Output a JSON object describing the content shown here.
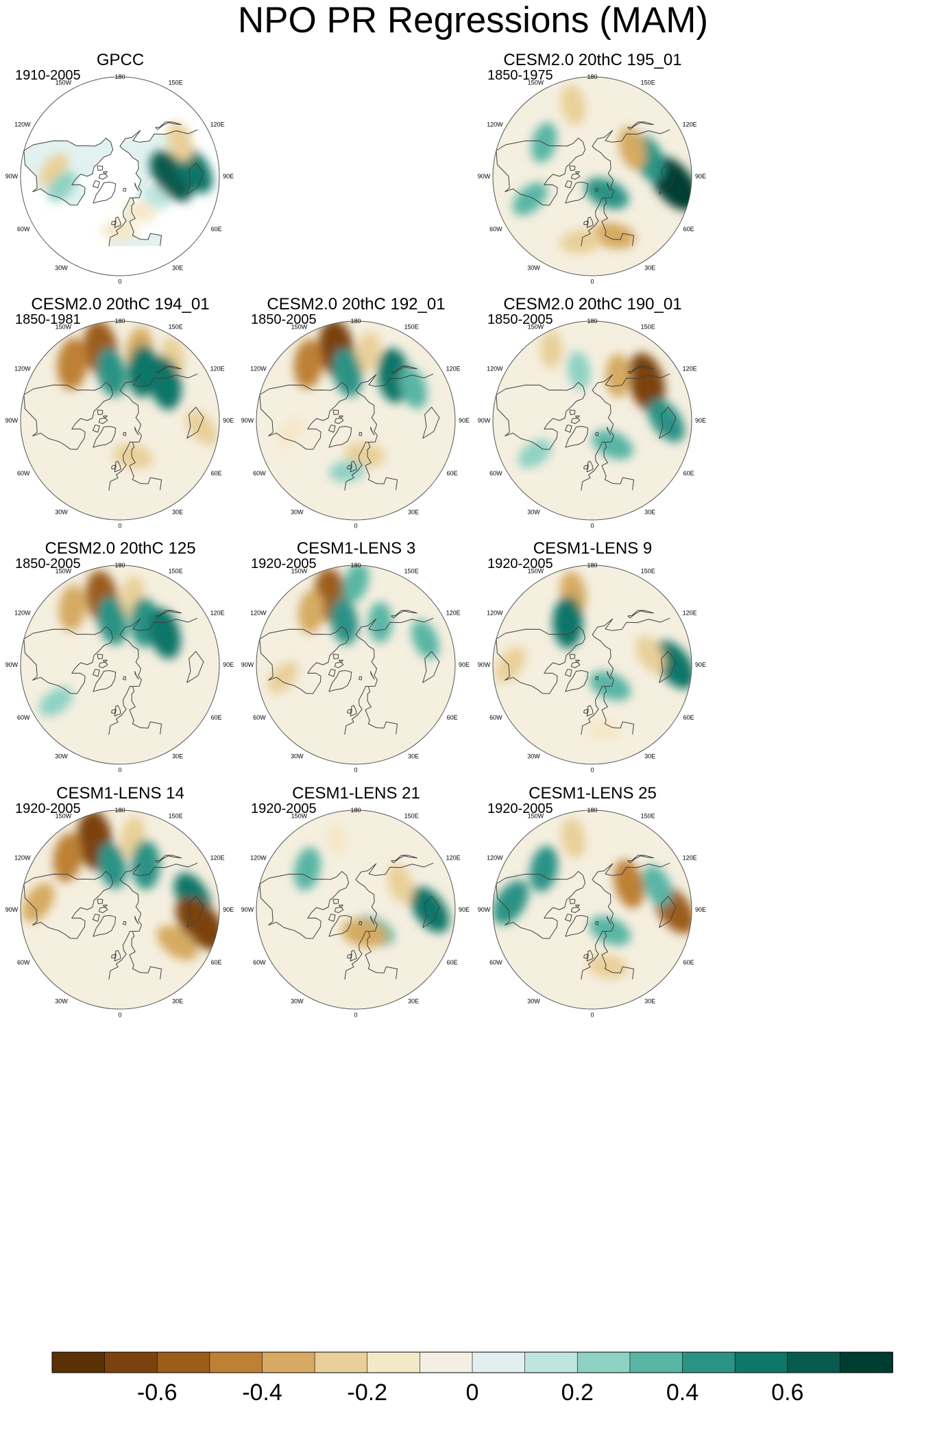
{
  "title": "NPO PR Regressions (MAM)",
  "colors": {
    "background": "#ffffff",
    "outline": "#555555",
    "coast": "#3f3f3f",
    "brown_strong": "#7a3f0b",
    "brown_mid": "#c98e3a",
    "tan_light": "#efe1bf",
    "neutral": "#f5efe0",
    "teal_light": "#d9efec",
    "teal_mid": "#6cc0b2",
    "teal_strong": "#0e6b5f",
    "missing": "#ffffff"
  },
  "chart_data": {
    "type": "heatmap",
    "projection": "north-polar-stereographic",
    "variable": "PR",
    "mode": "NPO",
    "season": "MAM",
    "longitude_labels": [
      "180",
      "150E",
      "120E",
      "90E",
      "60E",
      "30E",
      "0",
      "30W",
      "60W",
      "90W",
      "120W",
      "150W"
    ],
    "colorbar": {
      "levels": [
        -0.7,
        -0.6,
        -0.5,
        -0.4,
        -0.3,
        -0.2,
        -0.1,
        0,
        0.1,
        0.2,
        0.3,
        0.4,
        0.5,
        0.6,
        0.7
      ],
      "tick_labels": [
        "-0.6",
        "-0.4",
        "-0.2",
        "0",
        "0.2",
        "0.4",
        "0.6"
      ],
      "tick_values": [
        -0.6,
        -0.4,
        -0.2,
        0,
        0.2,
        0.4,
        0.6
      ],
      "colors": [
        "#5a3005",
        "#7b4210",
        "#9c5d1b",
        "#bd8035",
        "#d6aa62",
        "#e9d09a",
        "#f5e8c8",
        "#f4efe2",
        "#e1f0ee",
        "#bfe5df",
        "#8ed2c4",
        "#59b5a4",
        "#2b9385",
        "#0f7668",
        "#085b4e",
        "#003d31"
      ]
    },
    "panels": [
      {
        "title": "GPCC",
        "period": "1910-2005",
        "has_data": true,
        "land_only": true,
        "features": [
          {
            "lon": 90,
            "lat": 50,
            "value": 0.6
          },
          {
            "lon": 95,
            "lat": 35,
            "value": 0.5
          },
          {
            "lon": 120,
            "lat": 38,
            "value": -0.3
          },
          {
            "lon": -95,
            "lat": 40,
            "value": -0.25
          },
          {
            "lon": -80,
            "lat": 45,
            "value": 0.2
          },
          {
            "lon": 0,
            "lat": 48,
            "value": -0.2
          },
          {
            "lon": 30,
            "lat": 58,
            "value": -0.15
          },
          {
            "lon": 60,
            "lat": 58,
            "value": 0.15
          }
        ]
      },
      {
        "title": "",
        "period": "",
        "has_data": false,
        "features": []
      },
      {
        "title": "CESM2.0 20thC 195_01",
        "period": "1850-1975",
        "has_data": true,
        "land_only": false,
        "features": [
          {
            "lon": 85,
            "lat": 30,
            "value": 0.7
          },
          {
            "lon": 108,
            "lat": 45,
            "value": 0.45
          },
          {
            "lon": 125,
            "lat": 52,
            "value": -0.35
          },
          {
            "lon": 20,
            "lat": 42,
            "value": -0.35
          },
          {
            "lon": -10,
            "lat": 40,
            "value": -0.3
          },
          {
            "lon": -165,
            "lat": 35,
            "value": -0.3
          },
          {
            "lon": -125,
            "lat": 45,
            "value": 0.3
          },
          {
            "lon": -70,
            "lat": 40,
            "value": 0.3
          },
          {
            "lon": 40,
            "lat": 72,
            "value": 0.4
          }
        ]
      },
      {
        "title": "CESM2.0 20thC 194_01",
        "period": "1850-1981",
        "has_data": true,
        "land_only": false,
        "features": [
          {
            "lon": -165,
            "lat": 35,
            "value": -0.6
          },
          {
            "lon": -140,
            "lat": 35,
            "value": -0.5
          },
          {
            "lon": 165,
            "lat": 35,
            "value": -0.35
          },
          {
            "lon": 140,
            "lat": 30,
            "value": -0.3
          },
          {
            "lon": -170,
            "lat": 52,
            "value": 0.45
          },
          {
            "lon": 155,
            "lat": 48,
            "value": 0.5
          },
          {
            "lon": 130,
            "lat": 45,
            "value": 0.55
          },
          {
            "lon": 20,
            "lat": 60,
            "value": -0.3
          },
          {
            "lon": 85,
            "lat": 30,
            "value": -0.3
          }
        ]
      },
      {
        "title": "CESM2.0 20thC 192_01",
        "period": "1850-2005",
        "has_data": true,
        "land_only": false,
        "features": [
          {
            "lon": -165,
            "lat": 35,
            "value": -0.65
          },
          {
            "lon": -140,
            "lat": 35,
            "value": -0.45
          },
          {
            "lon": 170,
            "lat": 38,
            "value": -0.3
          },
          {
            "lon": -170,
            "lat": 52,
            "value": 0.45
          },
          {
            "lon": 140,
            "lat": 45,
            "value": 0.55
          },
          {
            "lon": 120,
            "lat": 40,
            "value": 0.35
          },
          {
            "lon": 15,
            "lat": 62,
            "value": -0.3
          },
          {
            "lon": -80,
            "lat": 40,
            "value": -0.2
          },
          {
            "lon": -10,
            "lat": 50,
            "value": 0.2
          }
        ]
      },
      {
        "title": "CESM2.0 20thC 190_01",
        "period": "1850-2005",
        "has_data": true,
        "land_only": false,
        "features": [
          {
            "lon": 125,
            "lat": 40,
            "value": -0.65
          },
          {
            "lon": 150,
            "lat": 50,
            "value": -0.35
          },
          {
            "lon": -150,
            "lat": 30,
            "value": -0.25
          },
          {
            "lon": -165,
            "lat": 50,
            "value": 0.25
          },
          {
            "lon": 90,
            "lat": 35,
            "value": 0.45
          },
          {
            "lon": 40,
            "lat": 65,
            "value": 0.35
          },
          {
            "lon": -60,
            "lat": 40,
            "value": 0.25
          }
        ]
      },
      {
        "title": "CESM2.0 20thC 125",
        "period": "1850-2005",
        "has_data": true,
        "land_only": false,
        "features": [
          {
            "lon": -165,
            "lat": 38,
            "value": -0.55
          },
          {
            "lon": -140,
            "lat": 35,
            "value": -0.4
          },
          {
            "lon": 170,
            "lat": 38,
            "value": -0.3
          },
          {
            "lon": -170,
            "lat": 55,
            "value": 0.45
          },
          {
            "lon": 150,
            "lat": 52,
            "value": 0.45
          },
          {
            "lon": 125,
            "lat": 48,
            "value": 0.5
          },
          {
            "lon": -60,
            "lat": 35,
            "value": 0.25
          }
        ]
      },
      {
        "title": "CESM1-LENS 3",
        "period": "1920-2005",
        "has_data": true,
        "land_only": false,
        "features": [
          {
            "lon": -160,
            "lat": 35,
            "value": -0.55
          },
          {
            "lon": -140,
            "lat": 38,
            "value": -0.35
          },
          {
            "lon": 180,
            "lat": 30,
            "value": 0.3
          },
          {
            "lon": -165,
            "lat": 55,
            "value": 0.4
          },
          {
            "lon": 150,
            "lat": 52,
            "value": 0.3
          },
          {
            "lon": 110,
            "lat": 35,
            "value": 0.3
          },
          {
            "lon": -80,
            "lat": 35,
            "value": -0.25
          }
        ]
      },
      {
        "title": "CESM1-LENS 9",
        "period": "1920-2005",
        "has_data": true,
        "land_only": false,
        "features": [
          {
            "lon": -165,
            "lat": 35,
            "value": -0.35
          },
          {
            "lon": -150,
            "lat": 52,
            "value": 0.5
          },
          {
            "lon": 90,
            "lat": 30,
            "value": 0.55
          },
          {
            "lon": 100,
            "lat": 45,
            "value": -0.3
          },
          {
            "lon": 40,
            "lat": 68,
            "value": 0.35
          },
          {
            "lon": -90,
            "lat": 30,
            "value": -0.3
          },
          {
            "lon": 10,
            "lat": 40,
            "value": -0.2
          }
        ]
      },
      {
        "title": "CESM1-LENS 14",
        "period": "1920-2005",
        "has_data": true,
        "land_only": false,
        "features": [
          {
            "lon": -160,
            "lat": 35,
            "value": -0.65
          },
          {
            "lon": -135,
            "lat": 35,
            "value": -0.45
          },
          {
            "lon": 170,
            "lat": 35,
            "value": -0.3
          },
          {
            "lon": -170,
            "lat": 55,
            "value": 0.4
          },
          {
            "lon": 150,
            "lat": 50,
            "value": 0.45
          },
          {
            "lon": 100,
            "lat": 35,
            "value": 0.5
          },
          {
            "lon": 80,
            "lat": 30,
            "value": -0.7
          },
          {
            "lon": 60,
            "lat": 40,
            "value": -0.4
          },
          {
            "lon": -95,
            "lat": 30,
            "value": -0.35
          }
        ]
      },
      {
        "title": "CESM1-LENS 21",
        "period": "1920-2005",
        "has_data": true,
        "land_only": false,
        "features": [
          {
            "lon": -130,
            "lat": 42,
            "value": 0.35
          },
          {
            "lon": 90,
            "lat": 35,
            "value": 0.5
          },
          {
            "lon": 120,
            "lat": 50,
            "value": -0.3
          },
          {
            "lon": 40,
            "lat": 68,
            "value": 0.35
          },
          {
            "lon": 20,
            "lat": 70,
            "value": -0.4
          },
          {
            "lon": -165,
            "lat": 35,
            "value": -0.2
          }
        ]
      },
      {
        "title": "CESM1-LENS 25",
        "period": "1920-2005",
        "has_data": true,
        "land_only": false,
        "features": [
          {
            "lon": -130,
            "lat": 42,
            "value": 0.4
          },
          {
            "lon": -165,
            "lat": 35,
            "value": -0.3
          },
          {
            "lon": 90,
            "lat": 30,
            "value": -0.55
          },
          {
            "lon": 110,
            "lat": 38,
            "value": 0.35
          },
          {
            "lon": 125,
            "lat": 55,
            "value": -0.45
          },
          {
            "lon": 15,
            "lat": 45,
            "value": -0.3
          },
          {
            "lon": -95,
            "lat": 30,
            "value": 0.45
          },
          {
            "lon": 40,
            "lat": 68,
            "value": 0.35
          }
        ]
      }
    ]
  }
}
